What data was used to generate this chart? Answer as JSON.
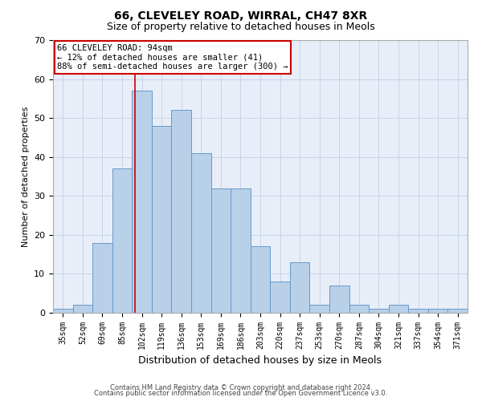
{
  "title1": "66, CLEVELEY ROAD, WIRRAL, CH47 8XR",
  "title2": "Size of property relative to detached houses in Meols",
  "xlabel": "Distribution of detached houses by size in Meols",
  "ylabel": "Number of detached properties",
  "footnote1": "Contains HM Land Registry data © Crown copyright and database right 2024.",
  "footnote2": "Contains public sector information licensed under the Open Government Licence v3.0.",
  "bin_labels": [
    "35sqm",
    "52sqm",
    "69sqm",
    "85sqm",
    "102sqm",
    "119sqm",
    "136sqm",
    "153sqm",
    "169sqm",
    "186sqm",
    "203sqm",
    "220sqm",
    "237sqm",
    "253sqm",
    "270sqm",
    "287sqm",
    "304sqm",
    "321sqm",
    "337sqm",
    "354sqm",
    "371sqm"
  ],
  "bar_heights": [
    1,
    2,
    18,
    37,
    57,
    48,
    52,
    41,
    32,
    32,
    17,
    8,
    13,
    2,
    7,
    2,
    1,
    2,
    1,
    1,
    1
  ],
  "bar_color": "#b8d0e8",
  "bar_edge_color": "#6699cc",
  "grid_color": "#c8d4e8",
  "bg_color": "#e8eef8",
  "red_line_bin": 3.65,
  "ylim": [
    0,
    70
  ],
  "yticks": [
    0,
    10,
    20,
    30,
    40,
    50,
    60,
    70
  ],
  "annotation_text": "66 CLEVELEY ROAD: 94sqm\n← 12% of detached houses are smaller (41)\n88% of semi-detached houses are larger (300) →",
  "annotation_box_color": "#ffffff",
  "annotation_box_edge": "#cc0000",
  "title1_fontsize": 10,
  "title2_fontsize": 9,
  "ylabel_fontsize": 8,
  "xlabel_fontsize": 9,
  "tick_fontsize": 7,
  "annot_fontsize": 7.5,
  "footnote_fontsize": 6
}
